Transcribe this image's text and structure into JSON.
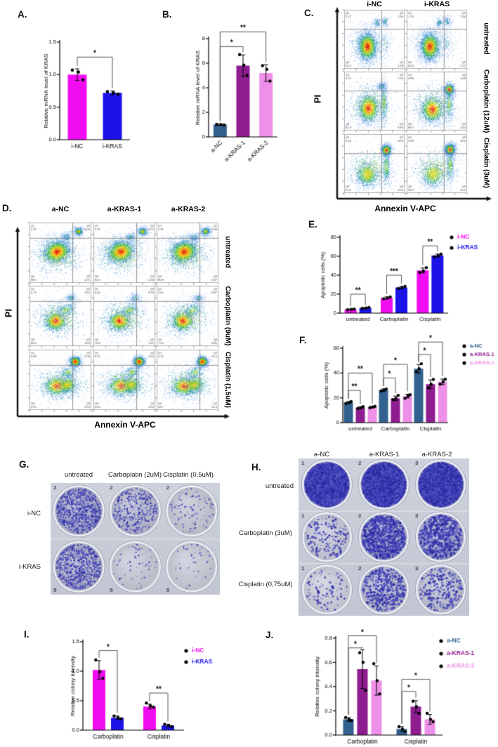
{
  "panels": {
    "A": {
      "label": "A."
    },
    "B": {
      "label": "B."
    },
    "C": {
      "label": "C."
    },
    "D": {
      "label": "D."
    },
    "E": {
      "label": "E."
    },
    "F": {
      "label": "F."
    },
    "G": {
      "label": "G."
    },
    "H": {
      "label": "H."
    },
    "I": {
      "label": "I."
    },
    "J": {
      "label": "J."
    }
  },
  "colors": {
    "i_nc": "#f20cf2",
    "i_kras": "#1b13e8",
    "a_nc": "#31618e",
    "a_kras_1": "#8e1d90",
    "a_kras_2": "#ee8fe8",
    "colony": "#3434ac",
    "plate_bg": "#c8ccd6"
  },
  "chart_data": [
    {
      "id": "A",
      "type": "bar",
      "categories": [
        "i-NC",
        "i-KRAS"
      ],
      "values": [
        1.0,
        0.72
      ],
      "errors": [
        0.09,
        0.03
      ],
      "dots": [
        [
          1.07,
          1.04,
          0.92
        ],
        [
          0.74,
          0.72,
          0.7
        ]
      ],
      "bar_colors": [
        "#f20cf2",
        "#1b13e8"
      ],
      "ylabel": "Relative mRNA level of KRAS",
      "ylim": [
        0,
        1.5
      ],
      "yticks": [
        0,
        0.5,
        1,
        1.5
      ],
      "ytick_labels": [
        "0.0",
        "0.5",
        "1.0",
        "1.5"
      ],
      "sig": [
        {
          "a": 0,
          "b": 1,
          "label": "*",
          "y": 1.27
        }
      ]
    },
    {
      "id": "B",
      "type": "bar",
      "categories": [
        "a-NC",
        "a-KRAS-1",
        "a-KRAS-2"
      ],
      "values": [
        1.0,
        5.8,
        5.2
      ],
      "errors": [
        0.06,
        0.88,
        0.68
      ],
      "dots": [
        [
          1.02,
          1.0,
          0.97
        ],
        [
          6.7,
          5.85,
          5.0
        ],
        [
          5.8,
          5.5,
          4.55
        ]
      ],
      "bar_colors": [
        "#31618e",
        "#8e1d90",
        "#ee8fe8"
      ],
      "ylabel": "Relative mRNA level of KRAS",
      "ylim": [
        0,
        8
      ],
      "yticks": [
        0,
        2,
        4,
        6,
        8
      ],
      "ytick_labels": [
        "0",
        "2",
        "4",
        "6",
        "8"
      ],
      "xtick_rotation": 45,
      "sig": [
        {
          "a": 0,
          "b": 1,
          "label": "*",
          "y": 7.35
        },
        {
          "a": 0,
          "b": 2,
          "label": "**",
          "y": 8.55
        }
      ]
    },
    {
      "id": "C",
      "type": "scatter",
      "subtype": "flow-cytometry",
      "xlabel": "Annexin V-APC",
      "ylabel": "PI",
      "columns": [
        "i-NC",
        "i-KRAS"
      ],
      "rows": [
        "untreated",
        "Carboplatin (12uM)",
        "Cisplatin (3uM)"
      ],
      "quadrant_labels": [
        "Q1",
        "Q2",
        "Q3",
        "Q4"
      ],
      "quadrants": [
        [
          [
            "1.71",
            "1.90",
            "1.98",
            "94.4"
          ],
          [
            "1.76",
            "2.64",
            "2.27",
            "93.3"
          ]
        ],
        [
          [
            "1.75",
            "7.16",
            "9.83",
            "81.3"
          ],
          [
            "4.88",
            "14.8",
            "12.3",
            "68.3"
          ]
        ],
        [
          [
            "2.03",
            "28.8",
            "16.6",
            "51.6"
          ],
          [
            "3.98",
            "36.0",
            "21.1",
            "38.3"
          ]
        ]
      ]
    },
    {
      "id": "D",
      "type": "scatter",
      "subtype": "flow-cytometry",
      "xlabel": "Annexin V-APC",
      "ylabel": "PI",
      "columns": [
        "a-NC",
        "a-KRAS-1",
        "a-KRAS-2"
      ],
      "rows": [
        "untreated",
        "Carboplatin (9uM)",
        "Cisplatin (1,5uM)"
      ],
      "quadrant_labels": [
        "Q1",
        "Q2",
        "Q3",
        "Q4"
      ],
      "quadrants": [
        [
          [
            "2.23",
            "5.03",
            "4.71",
            "88.0"
          ],
          [
            "2.41",
            "7.71",
            "6.32",
            "83.5"
          ],
          [
            "2.39",
            "7.44",
            "4.37",
            "85.8"
          ]
        ],
        [
          [
            "6.79",
            "13.1",
            "13.8",
            "66.4"
          ],
          [
            "6.05",
            "8.33",
            "9.11",
            "76.6"
          ],
          [
            "5.05",
            "8.87",
            "8.65",
            "77.4"
          ]
        ],
        [
          [
            "6.88",
            "21.8",
            "23.8",
            "47.5"
          ],
          [
            "6.37",
            "16.6",
            "13.5",
            "63.5"
          ],
          [
            "6.32",
            "15.5",
            "12.4",
            "64.7"
          ]
        ]
      ]
    },
    {
      "id": "E",
      "type": "bar",
      "categories": [
        "untreated",
        "Carboplatin",
        "Cisplatin"
      ],
      "series": [
        {
          "name": "i-NC",
          "color": "#f20cf2",
          "values": [
            3.9,
            16,
            45
          ],
          "errors": [
            0.5,
            1.1,
            2.6
          ],
          "dots": [
            [
              3.5,
              3.9,
              4.3
            ],
            [
              15.1,
              16,
              17
            ],
            [
              43,
              44.5,
              48
            ]
          ]
        },
        {
          "name": "i-KRAS",
          "color": "#1b13e8",
          "values": [
            5.4,
            27,
            60.8
          ],
          "errors": [
            0.5,
            1.2,
            1.5
          ],
          "dots": [
            [
              5.0,
              5.4,
              5.9
            ],
            [
              26,
              27,
              28.2
            ],
            [
              59.5,
              60.5,
              62.3
            ]
          ]
        }
      ],
      "ylabel": "Apoptotic cells (%)",
      "ylim": [
        0,
        80
      ],
      "yticks": [
        0,
        20,
        40,
        60,
        80
      ],
      "ytick_labels": [
        "0",
        "20",
        "40",
        "60",
        "80"
      ],
      "sig": [
        {
          "g": 0,
          "a": 0,
          "b": 1,
          "label": "**",
          "y": 20
        },
        {
          "g": 1,
          "a": 0,
          "b": 1,
          "label": "***",
          "y": 40
        },
        {
          "g": 2,
          "a": 0,
          "b": 1,
          "label": "**",
          "y": 71
        }
      ]
    },
    {
      "id": "F",
      "type": "bar",
      "categories": [
        "untreated",
        "Carboplatin",
        "Cisplatin"
      ],
      "series": [
        {
          "name": "a-NC",
          "color": "#31618e",
          "values": [
            16.2,
            26.3,
            43.5
          ],
          "errors": [
            0.8,
            0.9,
            3.4
          ],
          "dots": [
            [
              15.5,
              16.2,
              17
            ],
            [
              25.5,
              26.3,
              27.1
            ],
            [
              41,
              43.5,
              47.5
            ]
          ]
        },
        {
          "name": "a-KRAS-1",
          "color": "#8e1d90",
          "values": [
            12.1,
            19.6,
            31
          ],
          "errors": [
            0.7,
            1.8,
            3.5
          ],
          "dots": [
            [
              11.5,
              12,
              12.9
            ],
            [
              18.6,
              19.5,
              22
            ],
            [
              28,
              31,
              34.8
            ]
          ]
        },
        {
          "name": "a-KRAS-2",
          "color": "#ee8fe8",
          "values": [
            12.6,
            21.4,
            33
          ],
          "errors": [
            0.6,
            1.5,
            2.1
          ],
          "dots": [
            [
              12,
              12.6,
              13.2
            ],
            [
              19.6,
              21.5,
              22.5
            ],
            [
              31,
              33,
              35
            ]
          ]
        }
      ],
      "ylabel": "Apoptotic cells (%)",
      "ylim": [
        0,
        60
      ],
      "yticks": [
        0,
        20,
        40,
        60
      ],
      "ytick_labels": [
        "0",
        "20",
        "40",
        "60"
      ],
      "sig": [
        {
          "g": 0,
          "a": 0,
          "b": 1,
          "label": "**",
          "y": 26
        },
        {
          "g": 0,
          "a": 0,
          "b": 2,
          "label": "**",
          "y": 40
        },
        {
          "g": 1,
          "a": 0,
          "b": 1,
          "label": "*",
          "y": 36
        },
        {
          "g": 1,
          "a": 0,
          "b": 2,
          "label": "*",
          "y": 47
        },
        {
          "g": 2,
          "a": 0,
          "b": 1,
          "label": "*",
          "y": 55
        },
        {
          "g": 2,
          "a": 0,
          "b": 2,
          "label": "*",
          "y": 65
        }
      ]
    },
    {
      "id": "G",
      "type": "other",
      "subtype": "colony-formation-assay",
      "columns": [
        "untreated",
        "Carboplatin (2uM)",
        "Cisplatin (0,5uM)"
      ],
      "rows": [
        "i-NC",
        "i-KRAS"
      ],
      "well_numbers": [
        [
          "2",
          "2",
          "2"
        ],
        [
          "5",
          "5",
          "5"
        ]
      ],
      "relative_density": [
        [
          "high",
          "medium",
          "low"
        ],
        [
          "high",
          "very-low",
          "very-low"
        ]
      ]
    },
    {
      "id": "H",
      "type": "other",
      "subtype": "colony-formation-assay",
      "columns": [
        "a-NC",
        "a-KRAS-1",
        "a-KRAS-2"
      ],
      "rows": [
        "untreated",
        "Carboplatin (3uM)",
        "Cisplatin (0,75uM)"
      ],
      "well_numbers": [
        [
          "1",
          "2",
          "3"
        ],
        [
          "1",
          "2",
          "3"
        ],
        [
          "1",
          "2",
          "3"
        ]
      ],
      "relative_density": [
        [
          "very-high",
          "very-high",
          "very-high"
        ],
        [
          "low",
          "high",
          "high"
        ],
        [
          "very-low",
          "medium",
          "low"
        ]
      ]
    },
    {
      "id": "I",
      "type": "bar",
      "categories": [
        "Carboplatin",
        "Cisplatin"
      ],
      "series": [
        {
          "name": "i-NC",
          "color": "#f20cf2",
          "values": [
            1.02,
            0.4
          ],
          "errors": [
            0.16,
            0.04
          ],
          "dots": [
            [
              1.19,
              0.99,
              0.88
            ],
            [
              0.46,
              0.41,
              0.39
            ]
          ]
        },
        {
          "name": "i-KRAS",
          "color": "#1b13e8",
          "values": [
            0.21,
            0.08
          ],
          "errors": [
            0.03,
            0.02
          ],
          "dots": [
            [
              0.24,
              0.21,
              0.19
            ],
            [
              0.1,
              0.08,
              0.06
            ]
          ]
        }
      ],
      "ylabel": "Relative colony intensity",
      "ylim": [
        0,
        1.5
      ],
      "yticks": [
        0,
        0.5,
        1,
        1.5
      ],
      "ytick_labels": [
        "0.0",
        "0.5",
        "1.0",
        "1.5"
      ],
      "sig": [
        {
          "g": 0,
          "a": 0,
          "b": 1,
          "label": "*",
          "y": 1.35
        },
        {
          "g": 1,
          "a": 0,
          "b": 1,
          "label": "**",
          "y": 0.63
        }
      ]
    },
    {
      "id": "J",
      "type": "bar",
      "categories": [
        "Carboplatin",
        "Cisplatin"
      ],
      "series": [
        {
          "name": "a-NC",
          "color": "#31618e",
          "values": [
            0.13,
            0.05
          ],
          "errors": [
            0.015,
            0.02
          ],
          "dots": [
            [
              0.145,
              0.13,
              0.12
            ],
            [
              0.07,
              0.05,
              0.03
            ]
          ]
        },
        {
          "name": "a-KRAS-1",
          "color": "#8e1d90",
          "values": [
            0.545,
            0.235
          ],
          "errors": [
            0.16,
            0.05
          ],
          "dots": [
            [
              0.68,
              0.6,
              0.37
            ],
            [
              0.28,
              0.235,
              0.18
            ]
          ]
        },
        {
          "name": "a-KRAS-2",
          "color": "#ee8fe8",
          "values": [
            0.45,
            0.13
          ],
          "errors": [
            0.12,
            0.04
          ],
          "dots": [
            [
              0.59,
              0.45,
              0.34
            ],
            [
              0.18,
              0.13,
              0.11
            ]
          ]
        }
      ],
      "ylabel": "Relative colony intensity",
      "ylim": [
        0,
        0.8
      ],
      "yticks": [
        0,
        0.2,
        0.4,
        0.6,
        0.8
      ],
      "ytick_labels": [
        "0.0",
        "0.2",
        "0.4",
        "0.6",
        "0.8"
      ],
      "sig": [
        {
          "g": 0,
          "a": 0,
          "b": 1,
          "label": "*",
          "y": 0.72
        },
        {
          "g": 0,
          "a": 0,
          "b": 2,
          "label": "*",
          "y": 0.82
        },
        {
          "g": 1,
          "a": 0,
          "b": 1,
          "label": "*",
          "y": 0.36
        },
        {
          "g": 1,
          "a": 0,
          "b": 2,
          "label": "*",
          "y": 0.46
        }
      ]
    }
  ]
}
